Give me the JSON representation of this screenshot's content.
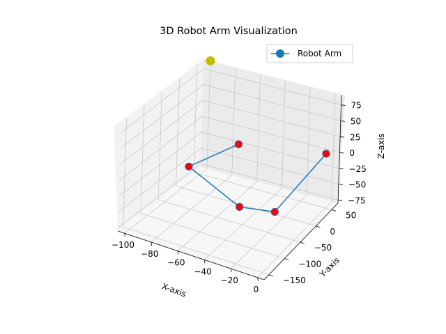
{
  "chart_data": {
    "type": "scatter",
    "projection": "3d",
    "title": "3D Robot Arm Visualization",
    "xlabel": "X-axis",
    "ylabel": "Y-axis",
    "zlabel": "Z-axis",
    "xlim": [
      -105,
      5
    ],
    "ylim": [
      -165,
      70
    ],
    "zlim": [
      -80,
      90
    ],
    "xticks": [
      -100,
      -80,
      -60,
      -40,
      -20,
      0
    ],
    "yticks": [
      -150,
      -100,
      -50,
      0,
      50
    ],
    "zticks": [
      -75,
      -50,
      -25,
      0,
      25,
      50,
      75
    ],
    "grid": true,
    "legend": {
      "placement": "top-right",
      "entries": [
        "Robot Arm"
      ]
    },
    "colors": {
      "arm_line": "#1f77b4",
      "joint": "#ff0000",
      "joint_edge": "#5a4a8a",
      "end_effector": "#bfbf00"
    },
    "series": [
      {
        "name": "Robot Arm",
        "kind": "line",
        "points": [
          {
            "x": -2,
            "y": 55,
            "z": 2
          },
          {
            "x": -25,
            "y": -10,
            "z": -70
          },
          {
            "x": -50,
            "y": -20,
            "z": -72
          },
          {
            "x": -85,
            "y": -40,
            "z": -20
          },
          {
            "x": -65,
            "y": 30,
            "z": -5
          }
        ]
      }
    ],
    "joints": [
      {
        "x": -2,
        "y": 55,
        "z": 2
      },
      {
        "x": -25,
        "y": -10,
        "z": -70
      },
      {
        "x": -50,
        "y": -20,
        "z": -72
      },
      {
        "x": -85,
        "y": -40,
        "z": -20
      },
      {
        "x": -65,
        "y": 30,
        "z": -5
      }
    ],
    "end_effector": {
      "x": -100,
      "y": 70,
      "z": 90
    }
  }
}
